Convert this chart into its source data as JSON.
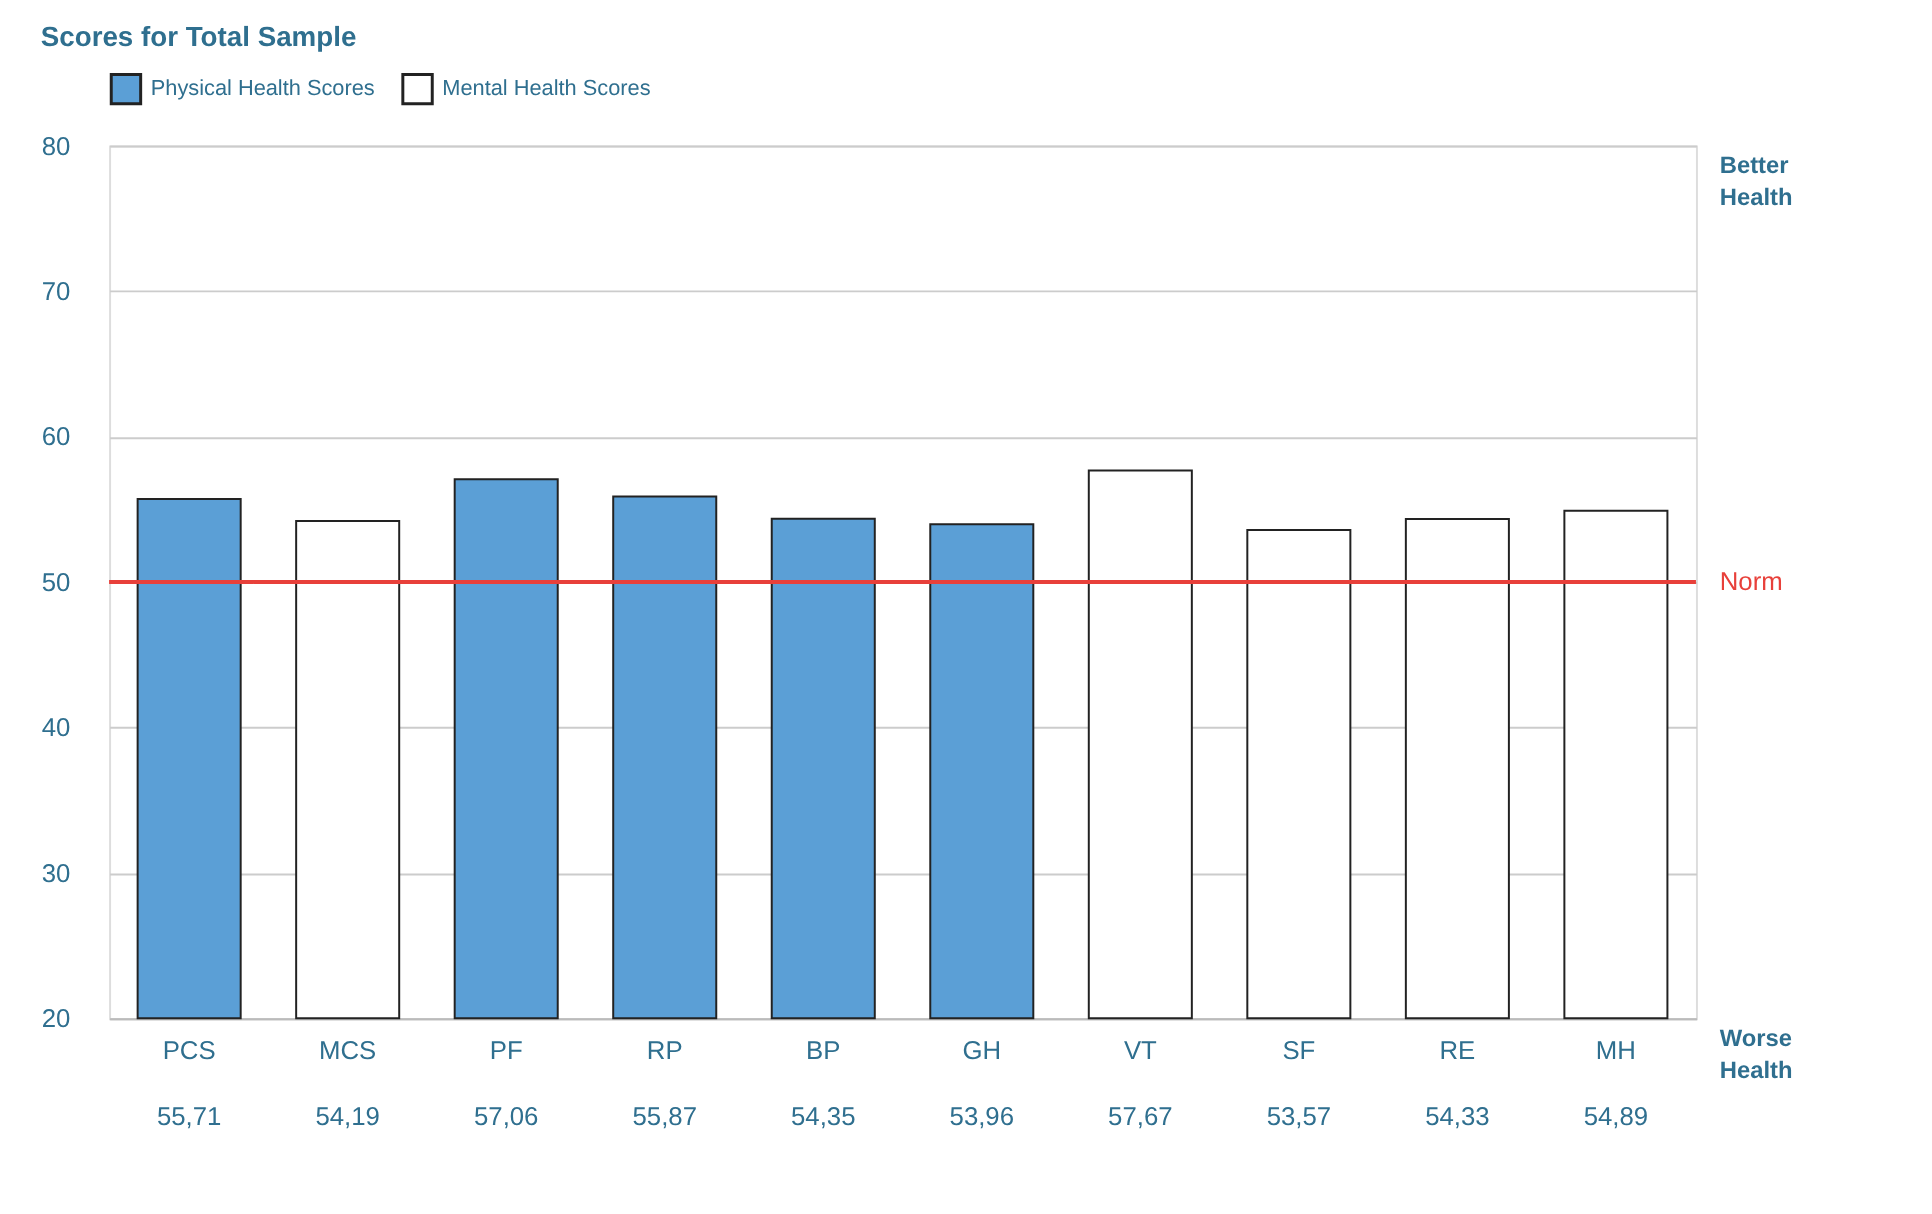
{
  "chart_data": {
    "type": "bar",
    "title": "Scores for Total Sample",
    "categories": [
      "PCS",
      "MCS",
      "PF",
      "RP",
      "BP",
      "GH",
      "VT",
      "SF",
      "RE",
      "MH"
    ],
    "series": [
      {
        "name": "Physical Health Scores",
        "color": "#5b9fd6",
        "values": [
          55.71,
          null,
          57.06,
          55.87,
          54.35,
          53.96,
          null,
          null,
          null,
          null
        ],
        "value_labels": [
          "55,71",
          null,
          "57,06",
          "55,87",
          "54,35",
          "53,96",
          null,
          null,
          null,
          null
        ]
      },
      {
        "name": "Mental Health Scores",
        "color": "#ffffff",
        "values": [
          null,
          54.19,
          null,
          null,
          null,
          null,
          57.67,
          53.57,
          54.33,
          54.89
        ],
        "value_labels": [
          null,
          "54,19",
          null,
          null,
          null,
          null,
          "57,67",
          "53,57",
          "54,33",
          "54,89"
        ]
      }
    ],
    "ylim": [
      20,
      80
    ],
    "yticks": [
      20,
      30,
      40,
      50,
      60,
      70,
      80
    ],
    "grid": "y",
    "legend": "top",
    "ref_lines": [
      {
        "axis": "y",
        "value": 50,
        "label": "Norm",
        "color": "#e8403a"
      }
    ],
    "annotations": [
      "Better Health",
      "Worse Health"
    ]
  }
}
